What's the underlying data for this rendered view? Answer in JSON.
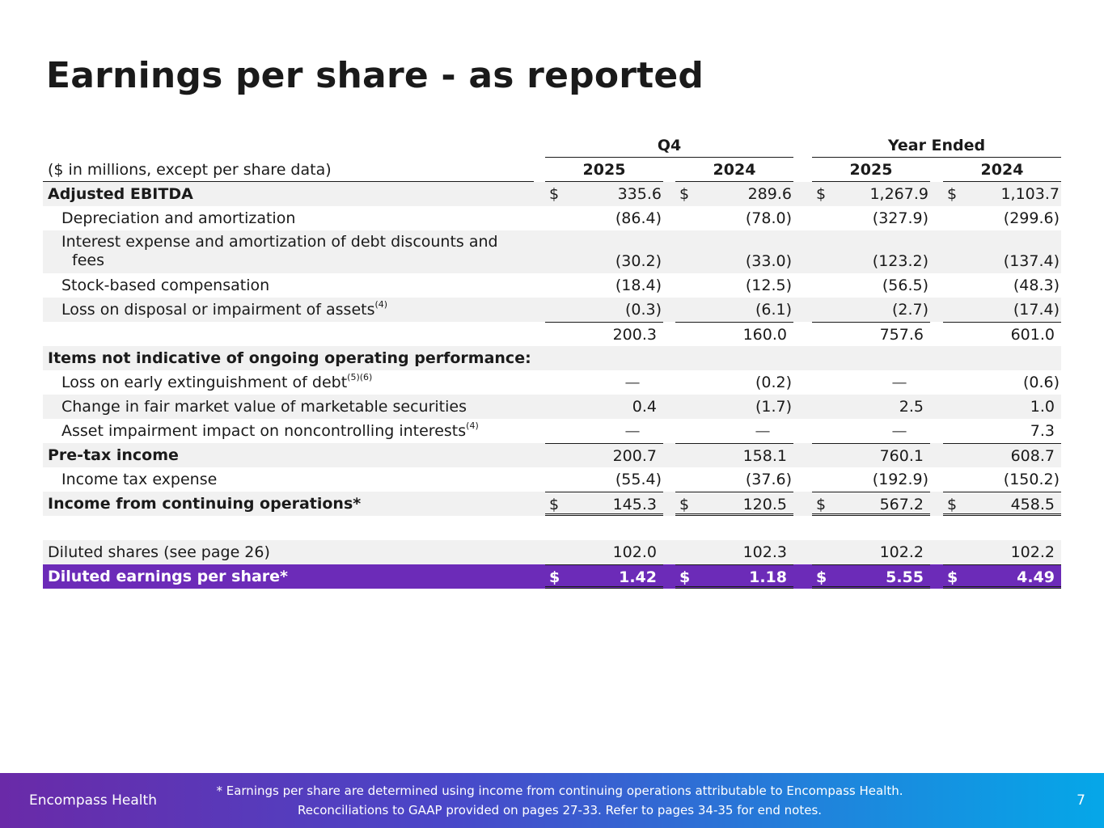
{
  "title": "Earnings per share - as reported",
  "table": {
    "group_headers": [
      "Q4",
      "Year Ended"
    ],
    "units_label": "($ in millions, except per share data)",
    "years": [
      "2025",
      "2024",
      "2025",
      "2024"
    ],
    "rows": {
      "adj_ebitda": {
        "label": "Adjusted EBITDA",
        "v": [
          "335.6",
          "289.6",
          "1,267.9",
          "1,103.7"
        ]
      },
      "dep": {
        "label": "Depreciation and amortization",
        "v": [
          "(86.4)",
          "(78.0)",
          "(327.9)",
          "(299.6)"
        ]
      },
      "interest": {
        "label_1": "Interest expense and amortization of debt discounts and",
        "label_2": "fees",
        "v": [
          "(30.2)",
          "(33.0)",
          "(123.2)",
          "(137.4)"
        ]
      },
      "stock": {
        "label": "Stock-based compensation",
        "v": [
          "(18.4)",
          "(12.5)",
          "(56.5)",
          "(48.3)"
        ]
      },
      "loss_disposal": {
        "label": "Loss on disposal or impairment of assets",
        "sup": "(4)",
        "v": [
          "(0.3)",
          "(6.1)",
          "(2.7)",
          "(17.4)"
        ]
      },
      "subtotal": {
        "v": [
          "200.3",
          "160.0",
          "757.6",
          "601.0"
        ]
      },
      "items_header": {
        "label": "Items not indicative of ongoing operating performance:"
      },
      "loss_early": {
        "label": "Loss on early extinguishment of debt",
        "sup": "(5)(6)",
        "v": [
          "—",
          "(0.2)",
          "—",
          "(0.6)"
        ]
      },
      "fair_value": {
        "label": "Change in fair market value of marketable securities",
        "v": [
          "0.4",
          "(1.7)",
          "2.5",
          "1.0"
        ]
      },
      "asset_impairment": {
        "label": "Asset impairment impact on noncontrolling interests",
        "sup": "(4)",
        "v": [
          "—",
          "—",
          "—",
          "7.3"
        ]
      },
      "pretax": {
        "label": "Pre-tax income",
        "v": [
          "200.7",
          "158.1",
          "760.1",
          "608.7"
        ]
      },
      "tax": {
        "label": "Income tax expense",
        "v": [
          "(55.4)",
          "(37.6)",
          "(192.9)",
          "(150.2)"
        ]
      },
      "income_cont": {
        "label": "Income from continuing operations*",
        "v": [
          "145.3",
          "120.5",
          "567.2",
          "458.5"
        ]
      },
      "diluted_shares": {
        "label": "Diluted shares (see page 26)",
        "v": [
          "102.0",
          "102.3",
          "102.2",
          "102.2"
        ]
      },
      "diluted_eps": {
        "label": "Diluted earnings per share*",
        "v": [
          "1.42",
          "1.18",
          "5.55",
          "4.49"
        ]
      }
    },
    "currency_symbol": "$"
  },
  "footer": {
    "brand": "Encompass Health",
    "note_line1": "* Earnings per share are determined using income from continuing operations attributable to Encompass Health.",
    "note_line2": "Reconciliations to GAAP provided on pages 27-33. Refer to pages 34-35 for end notes.",
    "page_number": "7",
    "colors": {
      "gradient_start": "#6a2aa8",
      "gradient_end": "#05a7e8",
      "highlight_row": "#6c2bb8"
    }
  }
}
